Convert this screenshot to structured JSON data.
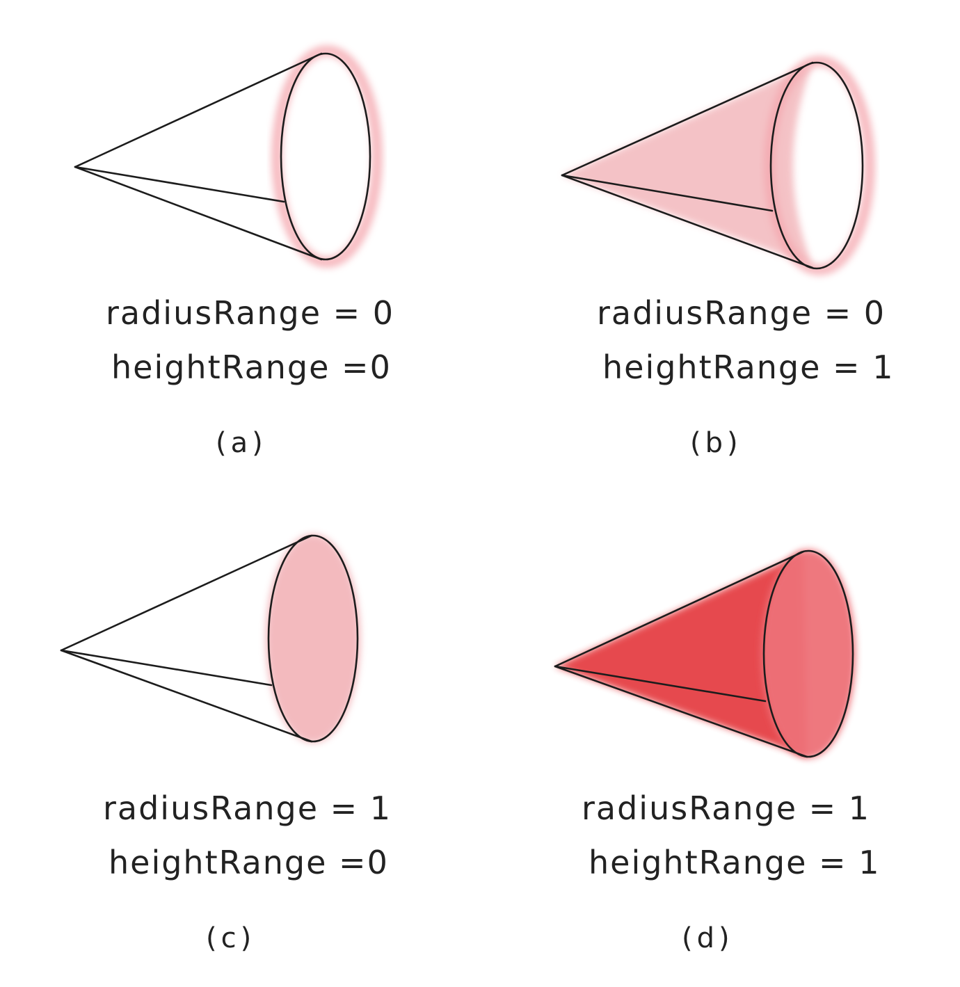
{
  "colors": {
    "ink": "#1c1c1c",
    "light_pink": "#f2b3b8",
    "mid_pink": "#f4a6ad",
    "strong_red": "#e53f44",
    "red_base": "#ee7178"
  },
  "panels": [
    {
      "id": "a",
      "radius_line": "radiusRange = 0",
      "height_line": "heightRange =0",
      "caption": "(a)",
      "radius_range": 0,
      "height_range": 0
    },
    {
      "id": "b",
      "radius_line": "radiusRange = 0",
      "height_line": "heightRange = 1",
      "caption": "(b)",
      "radius_range": 0,
      "height_range": 1
    },
    {
      "id": "c",
      "radius_line": "radiusRange = 1",
      "height_line": "heightRange =0",
      "caption": "(c)",
      "radius_range": 1,
      "height_range": 0
    },
    {
      "id": "d",
      "radius_line": "radiusRange = 1",
      "height_line": "heightRange = 1",
      "caption": "(d)",
      "radius_range": 1,
      "height_range": 1
    }
  ]
}
